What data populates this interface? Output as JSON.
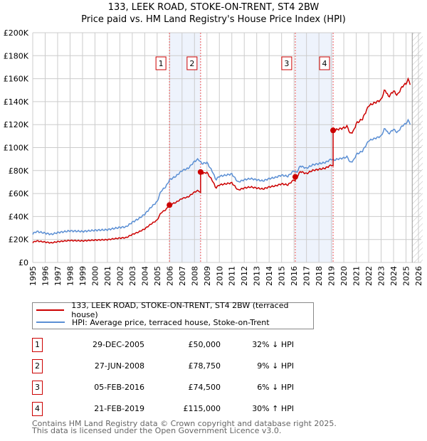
{
  "title": "133, LEEK ROAD, STOKE-ON-TRENT, ST4 2BW",
  "subtitle": "Price paid vs. HM Land Registry's House Price Index (HPI)",
  "chart_data": {
    "type": "line",
    "xlim": [
      1995,
      2026
    ],
    "ylim": [
      0,
      200000
    ],
    "y_ticks": [
      {
        "v": 0,
        "label": "£0"
      },
      {
        "v": 20000,
        "label": "£20K"
      },
      {
        "v": 40000,
        "label": "£40K"
      },
      {
        "v": 60000,
        "label": "£60K"
      },
      {
        "v": 80000,
        "label": "£80K"
      },
      {
        "v": 100000,
        "label": "£100K"
      },
      {
        "v": 120000,
        "label": "£120K"
      },
      {
        "v": 140000,
        "label": "£140K"
      },
      {
        "v": 160000,
        "label": "£160K"
      },
      {
        "v": 180000,
        "label": "£180K"
      },
      {
        "v": 200000,
        "label": "£200K"
      }
    ],
    "x_ticks": [
      "1995",
      "1996",
      "1997",
      "1998",
      "1999",
      "2000",
      "2001",
      "2002",
      "2003",
      "2004",
      "2005",
      "2006",
      "2007",
      "2008",
      "2009",
      "2010",
      "2011",
      "2012",
      "2013",
      "2014",
      "2015",
      "2016",
      "2017",
      "2018",
      "2019",
      "2020",
      "2021",
      "2022",
      "2023",
      "2024",
      "2025",
      "2026"
    ],
    "colors": {
      "property": "#cc0000",
      "hpi": "#5b8fd4",
      "shade": "#eef3fc"
    },
    "hpi_series": [
      [
        1995,
        25
      ],
      [
        1995.3,
        27
      ],
      [
        1996,
        25.5
      ],
      [
        1996.5,
        24.5
      ],
      [
        1997,
        26
      ],
      [
        1998,
        27.5
      ],
      [
        1999,
        27
      ],
      [
        2000,
        28
      ],
      [
        2001,
        28.5
      ],
      [
        2002,
        30.5
      ],
      [
        2002.5,
        31
      ],
      [
        2003,
        35
      ],
      [
        2003.5,
        38
      ],
      [
        2004,
        42
      ],
      [
        2004.5,
        48
      ],
      [
        2005,
        53
      ],
      [
        2005.3,
        62
      ],
      [
        2005.7,
        66
      ],
      [
        2006,
        72
      ],
      [
        2006.5,
        75
      ],
      [
        2007,
        80
      ],
      [
        2007.5,
        82
      ],
      [
        2008,
        88
      ],
      [
        2008.3,
        90
      ],
      [
        2008.6,
        86
      ],
      [
        2009,
        87
      ],
      [
        2009.5,
        78
      ],
      [
        2009.7,
        72
      ],
      [
        2010,
        75
      ],
      [
        2010.5,
        76
      ],
      [
        2011,
        77
      ],
      [
        2011.5,
        70
      ],
      [
        2012,
        72
      ],
      [
        2012.5,
        73
      ],
      [
        2013,
        72
      ],
      [
        2013.5,
        71
      ],
      [
        2014,
        73
      ],
      [
        2014.5,
        74
      ],
      [
        2015,
        76
      ],
      [
        2015.5,
        75
      ],
      [
        2016,
        80
      ],
      [
        2016.2,
        78
      ],
      [
        2016.5,
        84
      ],
      [
        2017,
        82
      ],
      [
        2017.5,
        85
      ],
      [
        2018,
        86
      ],
      [
        2018.5,
        87
      ],
      [
        2019,
        90
      ],
      [
        2019.2,
        89
      ],
      [
        2019.5,
        90
      ],
      [
        2020,
        91
      ],
      [
        2020.3,
        92
      ],
      [
        2020.5,
        87
      ],
      [
        2020.8,
        89
      ],
      [
        2021,
        94
      ],
      [
        2021.5,
        97
      ],
      [
        2022,
        106
      ],
      [
        2022.5,
        108
      ],
      [
        2023,
        110
      ],
      [
        2023.3,
        117
      ],
      [
        2023.6,
        112
      ],
      [
        2024,
        116
      ],
      [
        2024.3,
        113
      ],
      [
        2024.7,
        119
      ],
      [
        2025,
        121
      ],
      [
        2025.2,
        124
      ],
      [
        2025.4,
        119
      ]
    ],
    "legend": {
      "placement": "below",
      "property": "133, LEEK ROAD, STOKE-ON-TRENT, ST4 2BW (terraced house)",
      "hpi": "HPI: Average price, terraced house, Stoke-on-Trent"
    }
  },
  "sales": [
    {
      "n": "1",
      "x": 2005.99,
      "date": "29-DEC-2005",
      "price": "£50,000",
      "value": 50000,
      "hpi": "32% ↓ HPI"
    },
    {
      "n": "2",
      "x": 2008.49,
      "date": "27-JUN-2008",
      "price": "£78,750",
      "value": 78750,
      "hpi": "9% ↓ HPI"
    },
    {
      "n": "3",
      "x": 2016.1,
      "date": "05-FEB-2016",
      "price": "£74,500",
      "value": 74500,
      "hpi": "6% ↓ HPI"
    },
    {
      "n": "4",
      "x": 2019.14,
      "date": "21-FEB-2019",
      "price": "£115,000",
      "value": 115000,
      "hpi": "30% ↑ HPI"
    }
  ],
  "footer": [
    "Contains HM Land Registry data © Crown copyright and database right 2025.",
    "This data is licensed under the Open Government Licence v3.0."
  ]
}
